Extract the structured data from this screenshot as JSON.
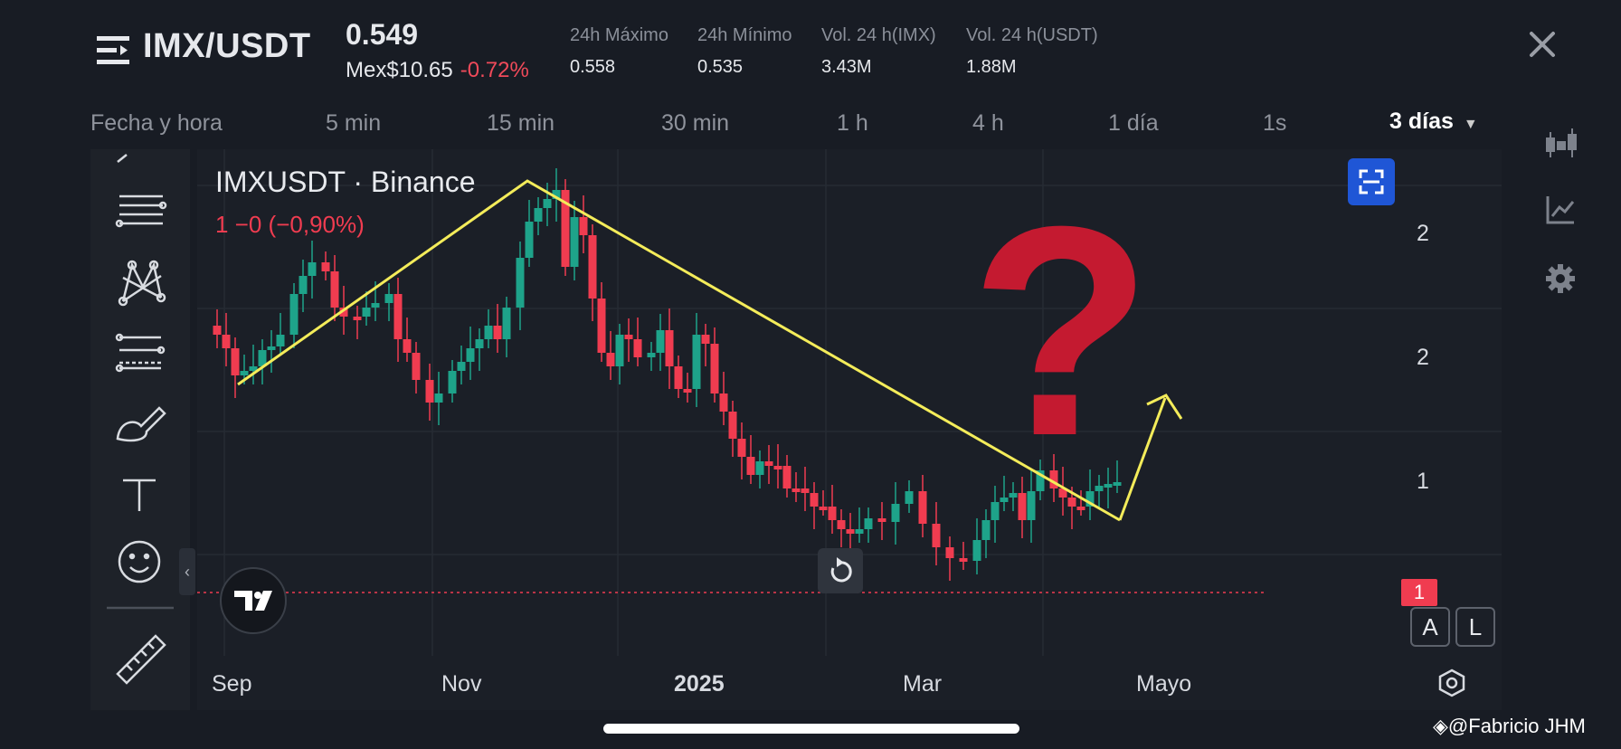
{
  "header": {
    "pair": "IMX/USDT",
    "price": "0.549",
    "fiat_price": "Mex$10.65",
    "change": "-0.72%",
    "stats": [
      {
        "label": "24h Máximo",
        "value": "0.558"
      },
      {
        "label": "24h Mínimo",
        "value": "0.535"
      },
      {
        "label": "Vol. 24 h(IMX)",
        "value": "3.43M"
      },
      {
        "label": "Vol. 24 h(USDT)",
        "value": "1.88M"
      }
    ]
  },
  "intervals": [
    "Fecha y hora",
    "5 min",
    "15 min",
    "30 min",
    "1 h",
    "4 h",
    "1 día",
    "1s",
    "3 días"
  ],
  "active_interval": "3 días",
  "chart": {
    "symbol": "IMXUSDT · Binance",
    "change_line": "1  −0 (−0,90%)",
    "x_labels": [
      "Sep",
      "Nov",
      "2025",
      "Mar",
      "Mayo"
    ],
    "y_labels": [
      "2",
      "2",
      "1",
      "1"
    ],
    "price_tag": "1",
    "scale_buttons": [
      "A",
      "L"
    ],
    "annotation": "?"
  },
  "credit": "@Fabricio JHM",
  "colors": {
    "up": "#1ea38a",
    "down": "#f03c50",
    "trendline": "#f4ec5a",
    "question_mark": "#c41a30",
    "accent": "#1f56d6"
  },
  "chart_data": {
    "type": "candlestick",
    "title": "IMXUSDT · Binance",
    "x_ticks": [
      "Sep",
      "Nov",
      "2025",
      "Mar",
      "Mayo"
    ],
    "y_ticks": [
      "2",
      "2",
      "1",
      "1"
    ],
    "annotations": [
      "trendline up Sep→Dec",
      "trendline down Dec→Jun",
      "arrow up",
      "question mark"
    ]
  }
}
